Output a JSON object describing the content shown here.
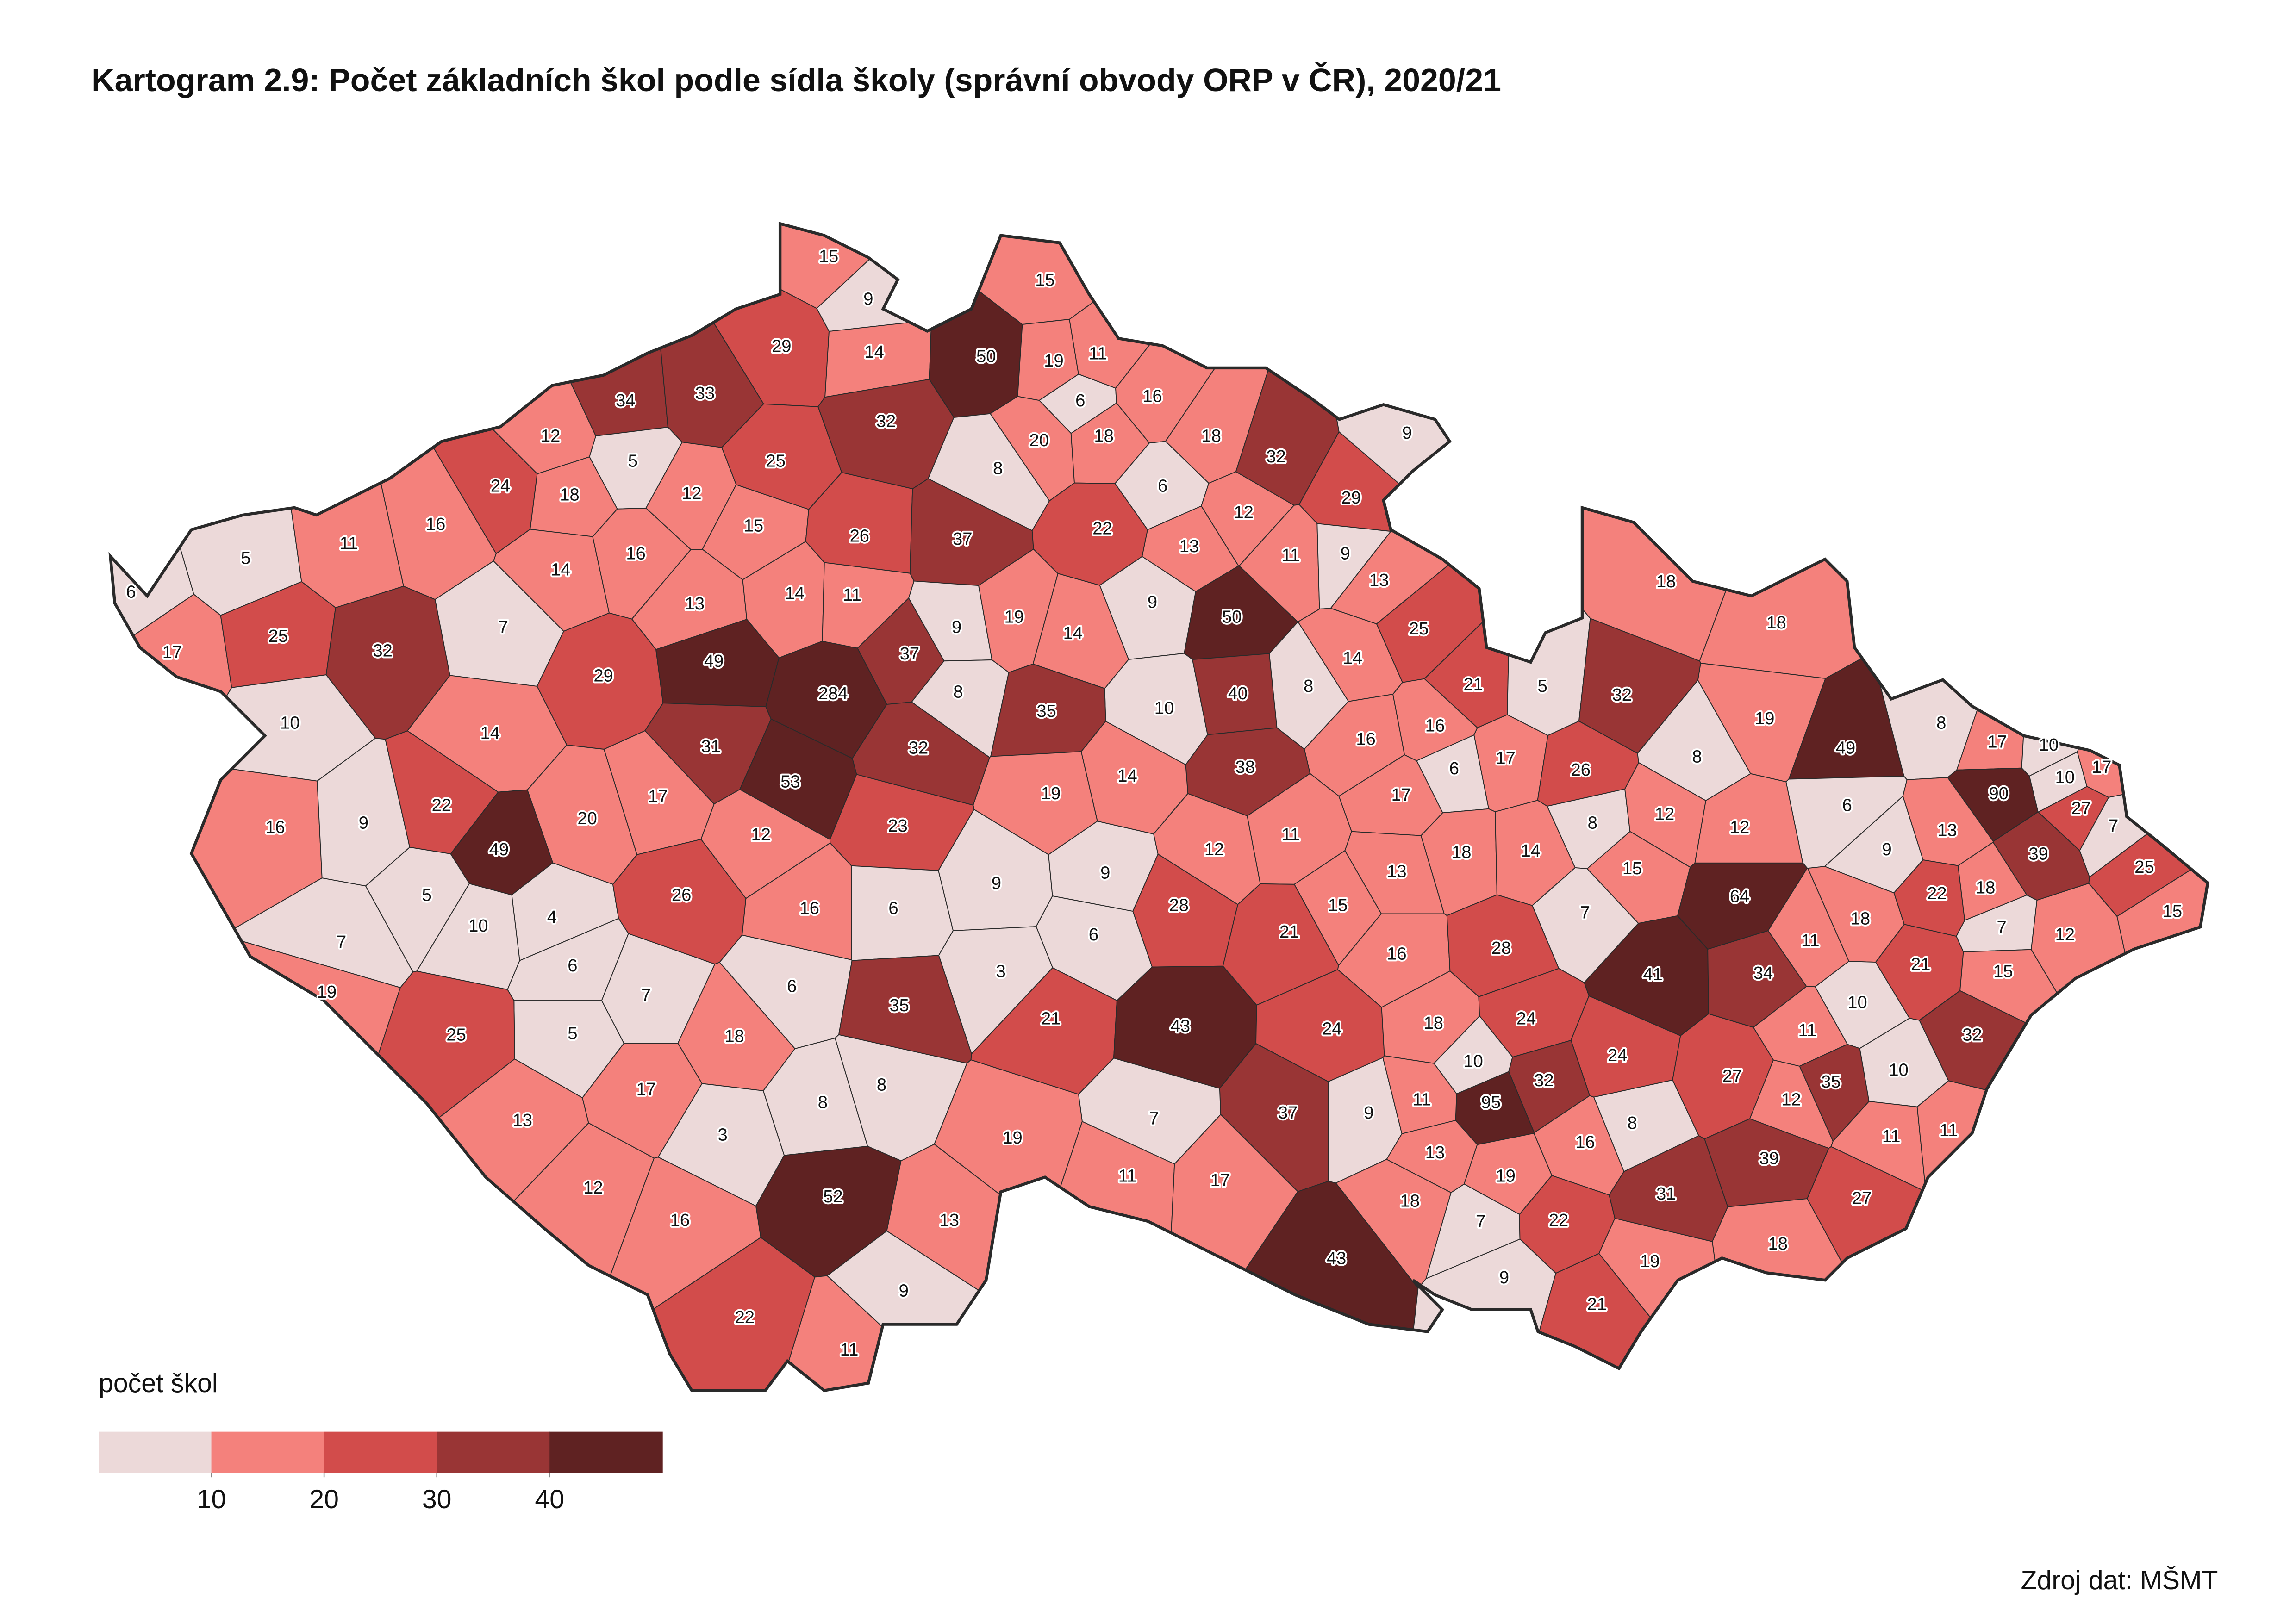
{
  "chart_data": {
    "type": "choropleth",
    "title": "Kartogram 2.9: Počet základních škol podle sídla školy (správní obvody ORP v ČR), 2020/21",
    "values": [
      15,
      9,
      15,
      29,
      14,
      50,
      19,
      11,
      34,
      33,
      32,
      6,
      16,
      12,
      5,
      25,
      20,
      18,
      18,
      32,
      9,
      24,
      18,
      12,
      8,
      6,
      29,
      16,
      15,
      26,
      37,
      22,
      12,
      5,
      11,
      14,
      16,
      13,
      11,
      9,
      6,
      13,
      14,
      11,
      9,
      50,
      13,
      17,
      25,
      32,
      7,
      9,
      19,
      14,
      25,
      18,
      18,
      29,
      49,
      37,
      8,
      284,
      14,
      21,
      5,
      32,
      10,
      14,
      10,
      40,
      8,
      35,
      19,
      8,
      49,
      17,
      10,
      31,
      32,
      16,
      16,
      17,
      6,
      26,
      8,
      10,
      17,
      90,
      16,
      9,
      22,
      20,
      17,
      53,
      38,
      14,
      19,
      17,
      6,
      27,
      7,
      23,
      12,
      11,
      8,
      12,
      12,
      13,
      49,
      18,
      14,
      13,
      12,
      9,
      39,
      5,
      4,
      10,
      26,
      16,
      6,
      9,
      9,
      28,
      15,
      15,
      22,
      18,
      25,
      64,
      7,
      6,
      6,
      21,
      7,
      18,
      7,
      12,
      15,
      16,
      28,
      11,
      3,
      6,
      41,
      34,
      21,
      15,
      19,
      7,
      35,
      21,
      43,
      10,
      24,
      18,
      24,
      5,
      25,
      18,
      24,
      11,
      32,
      10,
      32,
      17,
      8,
      8,
      27,
      35,
      10,
      95,
      12,
      37,
      9,
      11,
      7,
      13,
      3,
      16,
      8,
      19,
      13,
      11,
      11,
      39,
      19,
      31,
      12,
      52,
      11,
      17,
      18,
      16,
      13,
      7,
      22,
      27,
      18,
      19,
      43,
      9,
      9,
      21,
      22,
      11
    ],
    "legend": {
      "title": "počet škol",
      "breaks": [
        10,
        20,
        30,
        40
      ],
      "colors": [
        "#ecd9d9",
        "#f4817c",
        "#d24c4b",
        "#993535",
        "#5f2222"
      ]
    },
    "border_color": "#2a2a2a",
    "source": "Zdroj dat: MŠMT"
  }
}
